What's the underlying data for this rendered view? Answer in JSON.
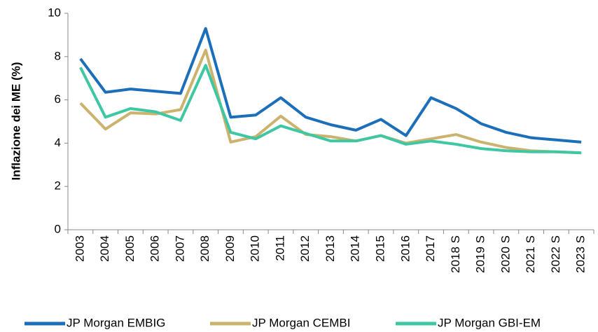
{
  "chart_data": {
    "type": "line",
    "ylabel": "Inflazione dei ME (%)",
    "categories": [
      "2003",
      "2004",
      "2005",
      "2006",
      "2007",
      "2008",
      "2009",
      "2010",
      "2011",
      "2012",
      "2013",
      "2014",
      "2015",
      "2016",
      "2017",
      "2018 S",
      "2019 S",
      "2020 S",
      "2021 S",
      "2022 S",
      "2023 S"
    ],
    "series": [
      {
        "name": "JP Morgan EMBIG",
        "color": "#1b6fba",
        "values": [
          7.9,
          6.35,
          6.5,
          6.4,
          6.3,
          9.3,
          5.2,
          5.3,
          6.1,
          5.2,
          4.85,
          4.6,
          5.1,
          4.35,
          6.1,
          5.6,
          4.9,
          4.5,
          4.25,
          4.15,
          4.05
        ]
      },
      {
        "name": "JP Morgan CEMBI",
        "color": "#cbb36e",
        "values": [
          5.85,
          4.65,
          5.4,
          5.35,
          5.55,
          8.3,
          4.05,
          4.3,
          5.25,
          4.4,
          4.3,
          4.1,
          4.35,
          4.0,
          4.2,
          4.4,
          4.05,
          3.8,
          3.65,
          3.6,
          3.55
        ]
      },
      {
        "name": "JP Morgan GBI-EM",
        "color": "#3ec7a2",
        "values": [
          7.5,
          5.2,
          5.6,
          5.45,
          5.05,
          7.6,
          4.5,
          4.2,
          4.8,
          4.45,
          4.1,
          4.1,
          4.35,
          3.95,
          4.1,
          3.95,
          3.75,
          3.65,
          3.6,
          3.6,
          3.55
        ]
      }
    ],
    "ylim": [
      0,
      10
    ],
    "yticks": [
      0,
      2,
      4,
      6,
      8,
      10
    ],
    "grid": false
  }
}
